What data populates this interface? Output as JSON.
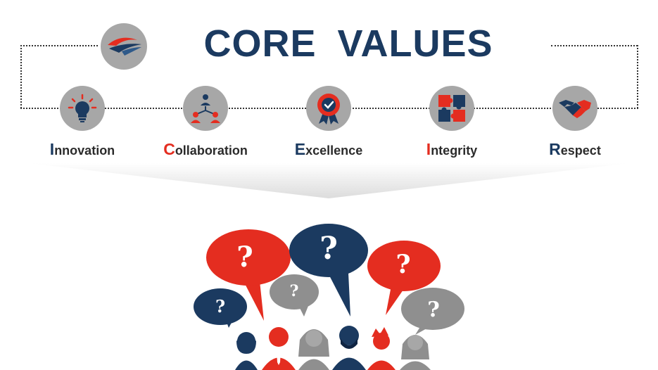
{
  "title": "CORE VALUES",
  "colors": {
    "navy": "#1b3a60",
    "red": "#e42d20",
    "gray": "#a7a7a7",
    "bubble_gray": "#8f8f8f"
  },
  "logo": {
    "icon": "wing-logo-icon"
  },
  "values": [
    {
      "initial": "I",
      "rest": "nnovation",
      "icon": "lightbulb-icon",
      "initial_color": "#1b3a60"
    },
    {
      "initial": "C",
      "rest": "ollaboration",
      "icon": "team-icon",
      "initial_color": "#e42d20"
    },
    {
      "initial": "E",
      "rest": "xcellence",
      "icon": "award-badge-icon",
      "initial_color": "#1b3a60"
    },
    {
      "initial": "I",
      "rest": "ntegrity",
      "icon": "puzzle-icon",
      "initial_color": "#e42d20"
    },
    {
      "initial": "R",
      "rest": "espect",
      "icon": "handshake-icon",
      "initial_color": "#1b3a60"
    }
  ],
  "bubbles": [
    {
      "text": "?",
      "color": "navy"
    },
    {
      "text": "?",
      "color": "red"
    },
    {
      "text": "?",
      "color": "gray"
    },
    {
      "text": "?",
      "color": "navy"
    },
    {
      "text": "?",
      "color": "red"
    },
    {
      "text": "?",
      "color": "gray"
    }
  ],
  "crowd": {
    "icon": "people-group-icon"
  }
}
